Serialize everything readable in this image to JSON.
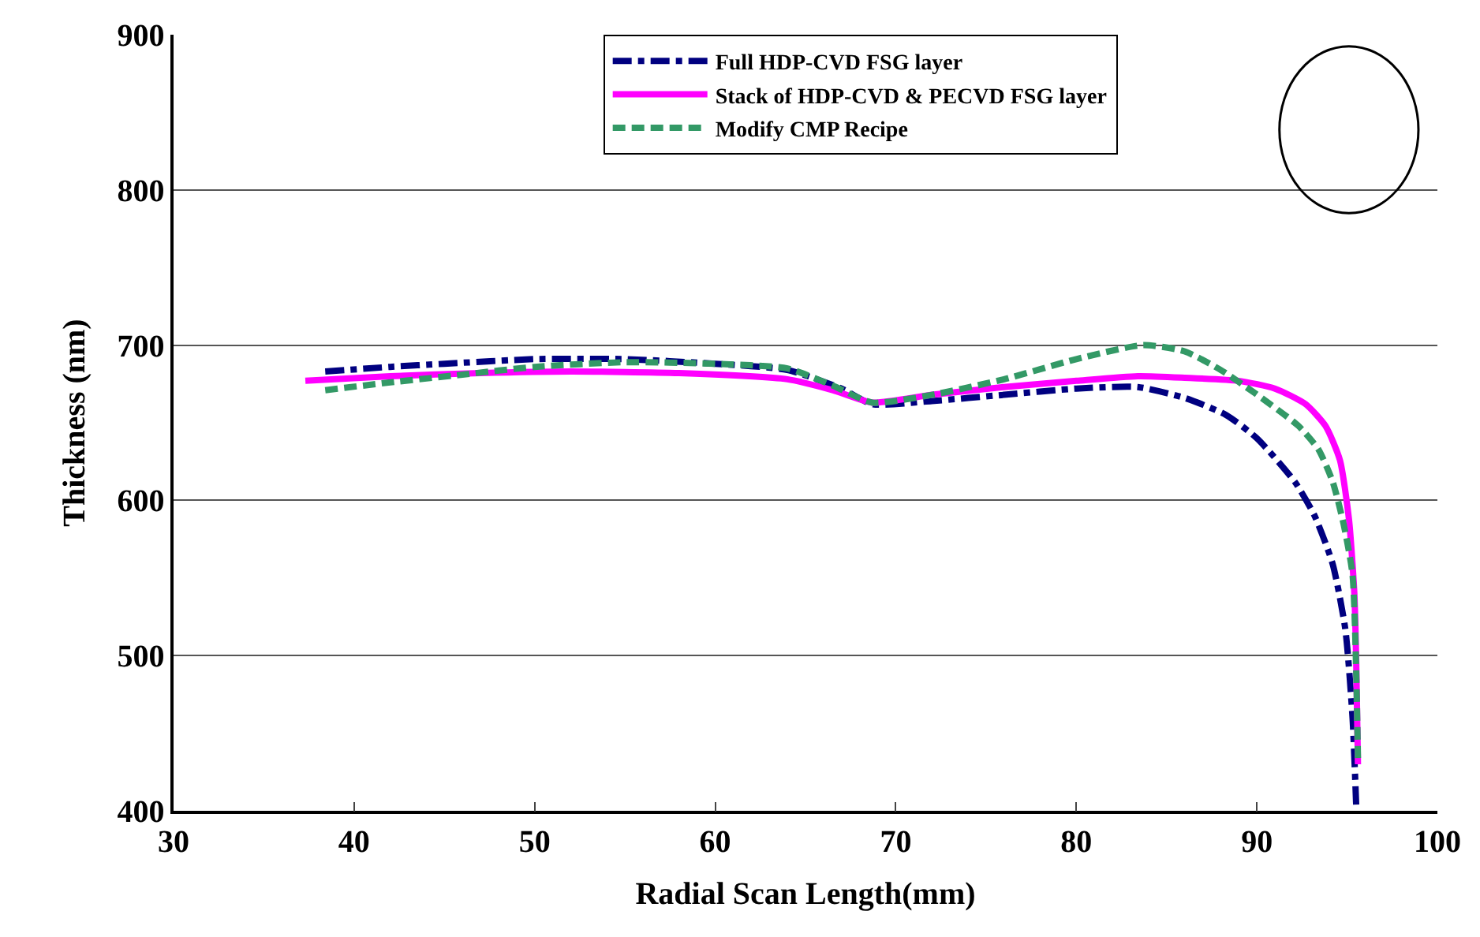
{
  "chart_data": {
    "type": "line",
    "xlabel": "Radial Scan Length(mm)",
    "ylabel": "Thickness (nm)",
    "xlim": [
      30,
      100
    ],
    "xticks": [
      30,
      40,
      50,
      60,
      70,
      80,
      90,
      100
    ],
    "ylim": [
      400,
      900
    ],
    "yticks": [
      400,
      500,
      600,
      700,
      800,
      900
    ],
    "grid": "y",
    "legend": "top right",
    "marker": "none",
    "series": [
      {
        "name": "Full HDP-CVD FSG layer",
        "color": "#000080",
        "line_style": "dashdot",
        "x": [
          38.4,
          42,
          45,
          50,
          55,
          60,
          64,
          67,
          68.7,
          72,
          76,
          80,
          83.4,
          86,
          88.3,
          90,
          92.1,
          93.2,
          94.2,
          94.9,
          95.3,
          95.5
        ],
        "values": [
          683,
          686,
          688,
          691,
          691,
          688,
          684,
          672,
          662,
          664,
          668,
          672,
          673,
          666,
          655,
          640,
          612,
          590,
          559,
          517,
          460,
          404
        ]
      },
      {
        "name": "Stack of HDP-CVD & PECVD FSG layer",
        "color": "#ff00ff",
        "line_style": "solid",
        "x": [
          37.3,
          42,
          47,
          52,
          58,
          64,
          66.5,
          68.7,
          72,
          76,
          80,
          83.4,
          86,
          89,
          91,
          92.7,
          93.8,
          94.6,
          95.1,
          95.4,
          95.5,
          95.6
        ],
        "values": [
          677,
          680,
          682,
          683,
          682,
          678,
          671,
          663,
          668,
          673,
          677,
          680,
          679,
          677,
          672,
          662,
          648,
          626,
          588,
          540,
          498,
          430
        ]
      },
      {
        "name": "Modify CMP Recipe",
        "color": "#339966",
        "line_style": "dashed",
        "x": [
          38.4,
          42,
          46,
          50,
          55,
          60,
          64,
          66.5,
          68.7,
          72,
          76,
          80,
          83.7,
          86,
          88,
          89.9,
          92.3,
          93.4,
          94.2,
          94.8,
          95.3,
          95.6
        ],
        "values": [
          671,
          676,
          681,
          686,
          689,
          688,
          685,
          674,
          663,
          668,
          678,
          691,
          700,
          696,
          684,
          669,
          648,
          633,
          612,
          585,
          552,
          434
        ]
      }
    ]
  }
}
